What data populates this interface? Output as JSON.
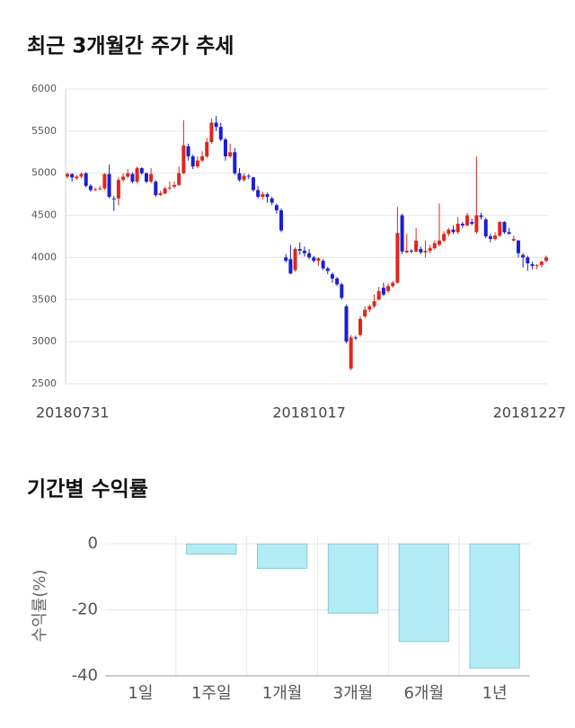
{
  "chart_data": [
    {
      "type": "candlestick",
      "title": "최근 3개월간 주가 추세",
      "categories": [
        "20180731",
        null,
        null,
        null,
        null,
        null,
        null,
        null,
        null,
        null,
        null,
        null,
        null,
        null,
        null,
        null,
        null,
        null,
        null,
        null,
        null,
        null,
        null,
        null,
        null,
        null,
        null,
        null,
        null,
        null,
        null,
        null,
        null,
        null,
        null,
        null,
        null,
        null,
        null,
        null,
        null,
        null,
        null,
        null,
        null,
        null,
        null,
        null,
        null,
        null,
        null,
        null,
        "20181017",
        null,
        null,
        null,
        null,
        null,
        null,
        null,
        null,
        null,
        null,
        null,
        null,
        null,
        null,
        null,
        null,
        null,
        null,
        null,
        null,
        null,
        null,
        null,
        null,
        null,
        null,
        null,
        null,
        null,
        null,
        null,
        null,
        null,
        null,
        null,
        null,
        null,
        null,
        null,
        null,
        null,
        null,
        null,
        null,
        null,
        null,
        null,
        null,
        null,
        null,
        "20181227"
      ],
      "open": [
        4960,
        4990,
        4940,
        4960,
        5000,
        4850,
        4800,
        4810,
        4820,
        4990,
        4700,
        4700,
        4920,
        4960,
        4990,
        4900,
        5060,
        5000,
        4900,
        4900,
        4740,
        4760,
        4820,
        4840,
        4860,
        5000,
        5320,
        5200,
        5080,
        5150,
        5200,
        5370,
        5600,
        5550,
        5400,
        5200,
        5250,
        5000,
        4920,
        4970,
        4950,
        4800,
        4720,
        4750,
        4700,
        4620,
        4560,
        4000,
        3980,
        3850,
        4100,
        4080,
        4050,
        4000,
        3960,
        3960,
        3870,
        3800,
        3750,
        3680,
        3420,
        2680,
        3050,
        3080,
        3300,
        3380,
        3420,
        3500,
        3640,
        3600,
        3660,
        3700,
        4500,
        4060,
        4080,
        4070,
        4100,
        4060,
        4080,
        4110,
        4150,
        4200,
        4280,
        4330,
        4300,
        4400,
        4380,
        4420,
        4300,
        4500,
        4450,
        4250,
        4220,
        4260,
        4420,
        4300,
        4200,
        4200,
        4030,
        4000,
        3920,
        3900,
        3910,
        3960
      ],
      "high": [
        5010,
        5000,
        4980,
        5010,
        5010,
        4870,
        4830,
        4850,
        5000,
        5100,
        4730,
        4950,
        5000,
        5050,
        5010,
        5080,
        5070,
        5010,
        5060,
        4920,
        4790,
        4840,
        4900,
        4900,
        5080,
        5630,
        5350,
        5220,
        5200,
        5260,
        5420,
        5650,
        5680,
        5600,
        5420,
        5350,
        5300,
        5060,
        5000,
        4990,
        4960,
        4850,
        4780,
        4770,
        4720,
        4640,
        4580,
        4040,
        4150,
        4120,
        4180,
        4130,
        4100,
        4020,
        4000,
        3980,
        3890,
        3820,
        3770,
        3700,
        3440,
        3080,
        3070,
        3300,
        3420,
        3440,
        3560,
        3650,
        3700,
        3690,
        3720,
        4600,
        4520,
        4280,
        4100,
        4350,
        4130,
        4200,
        4150,
        4200,
        4640,
        4310,
        4350,
        4380,
        4480,
        4420,
        4530,
        4460,
        5200,
        4530,
        4470,
        4280,
        4300,
        4430,
        4430,
        4350,
        4260,
        4210,
        4050,
        4020,
        3950,
        3920,
        3960,
        4020
      ],
      "low": [
        4940,
        4900,
        4920,
        4940,
        4830,
        4780,
        4790,
        4800,
        4800,
        4700,
        4550,
        4620,
        4900,
        4940,
        4880,
        4880,
        4980,
        4880,
        4880,
        4720,
        4730,
        4750,
        4800,
        4820,
        4850,
        4990,
        5150,
        5050,
        5060,
        5130,
        5180,
        5350,
        5500,
        5380,
        5150,
        5180,
        4980,
        4900,
        4900,
        4930,
        4780,
        4700,
        4690,
        4650,
        4620,
        4520,
        4300,
        3940,
        3800,
        3830,
        4030,
        4010,
        3980,
        3940,
        3900,
        3850,
        3800,
        3700,
        3660,
        3500,
        2980,
        2660,
        3020,
        3060,
        3280,
        3350,
        3400,
        3490,
        3540,
        3580,
        3640,
        3690,
        4040,
        4050,
        4050,
        4060,
        4040,
        4000,
        4050,
        4090,
        4130,
        4180,
        4250,
        4280,
        4280,
        4350,
        4370,
        4380,
        4280,
        4450,
        4230,
        4180,
        4200,
        4240,
        4280,
        4270,
        4190,
        4000,
        3880,
        3840,
        3860,
        3860,
        3880,
        3940
      ],
      "close": [
        4990,
        4950,
        4960,
        4990,
        4850,
        4800,
        4810,
        4820,
        4990,
        4720,
        4690,
        4920,
        4960,
        5000,
        4900,
        5060,
        5000,
        4900,
        4990,
        4740,
        4760,
        4820,
        4830,
        4860,
        5000,
        5330,
        5200,
        5080,
        5150,
        5200,
        5370,
        5600,
        5550,
        5400,
        5200,
        5250,
        5000,
        4920,
        4970,
        4960,
        4800,
        4720,
        4750,
        4720,
        4650,
        4560,
        4320,
        3960,
        3810,
        4100,
        4080,
        4050,
        4000,
        3960,
        3990,
        3870,
        3840,
        3750,
        3680,
        3520,
        3000,
        3050,
        3040,
        3270,
        3380,
        3420,
        3480,
        3600,
        3560,
        3660,
        3700,
        4290,
        4070,
        4080,
        4070,
        4200,
        4060,
        4080,
        4110,
        4170,
        4200,
        4280,
        4330,
        4300,
        4400,
        4380,
        4500,
        4400,
        4500,
        4480,
        4250,
        4220,
        4260,
        4420,
        4300,
        4280,
        4220,
        4050,
        4000,
        3930,
        3900,
        3910,
        3950,
        4000
      ],
      "up_color": "#e0261b",
      "down_color": "#1a1fd0",
      "ylim": [
        2500,
        6000
      ],
      "yticks": [
        2500,
        3000,
        3500,
        4000,
        4500,
        5000,
        5500,
        6000
      ],
      "grid": true
    },
    {
      "type": "bar",
      "title": "기간별 수익률",
      "y_label": "수익률(%)",
      "categories": [
        "1일",
        "1주일",
        "1개월",
        "3개월",
        "6개월",
        "1년"
      ],
      "values": [
        0,
        -3.1,
        -7.4,
        -21,
        -29.6,
        -37.6
      ],
      "color": "#b3ecf4",
      "edge_color": "#86c9d6",
      "ylim": [
        -40,
        2.5
      ],
      "yticks": [
        0,
        -20,
        -40
      ],
      "grid": true
    }
  ]
}
